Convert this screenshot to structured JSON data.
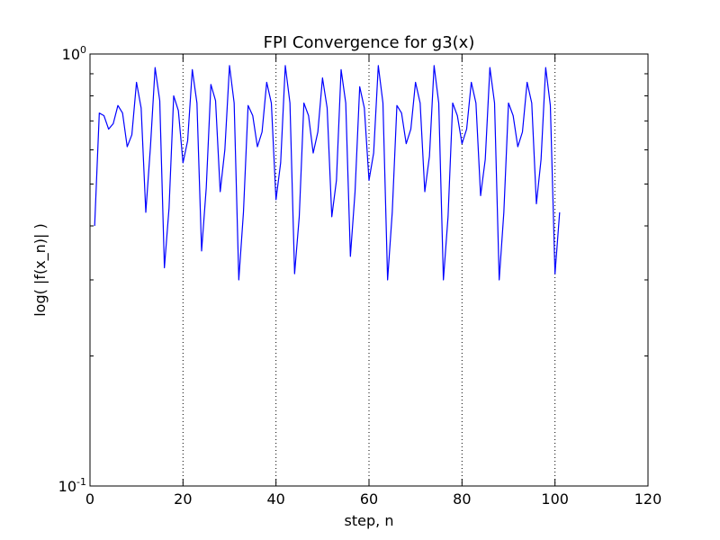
{
  "chart_data": {
    "type": "line",
    "title": "FPI Convergence for g3(x)",
    "xlabel": "step, n",
    "ylabel": "log( |f(x_n)| )",
    "xlim": [
      0,
      120
    ],
    "ylim": [
      0.1,
      1.0
    ],
    "yscale": "log",
    "grid": "x-major-dotted",
    "x_ticks": [
      0,
      20,
      40,
      60,
      80,
      100,
      120
    ],
    "x_tick_labels": [
      "0",
      "20",
      "40",
      "60",
      "80",
      "100",
      "120"
    ],
    "y_major_ticks": [
      0.1,
      1.0
    ],
    "y_tick_labels": [
      {
        "base": "10",
        "exp": "-1"
      },
      {
        "base": "10",
        "exp": "0"
      }
    ],
    "y_minor_ticks": [
      0.2,
      0.3,
      0.4,
      0.5,
      0.6,
      0.7,
      0.8,
      0.9
    ],
    "line_color": "#0000ff",
    "series": [
      {
        "x": [
          1,
          2,
          3,
          4,
          5,
          6,
          7,
          8,
          9,
          10,
          11,
          12,
          13,
          14,
          15,
          16,
          17,
          18,
          19,
          20,
          21,
          22,
          23,
          24,
          25,
          26,
          27,
          28,
          29,
          30,
          31,
          32,
          33,
          34,
          35,
          36,
          37,
          38,
          39,
          40,
          41,
          42,
          43,
          44,
          45,
          46,
          47,
          48,
          49,
          50,
          51,
          52,
          53,
          54,
          55,
          56,
          57,
          58,
          59,
          60,
          61,
          62,
          63,
          64,
          65,
          66,
          67,
          68,
          69,
          70,
          71,
          72,
          73,
          74,
          75,
          76,
          77,
          78,
          79,
          80,
          81,
          82,
          83,
          84,
          85,
          86,
          87,
          88,
          89,
          90,
          91,
          92,
          93,
          94,
          95,
          96,
          97,
          98,
          99,
          100,
          101
        ],
        "values": [
          0.4,
          0.73,
          0.72,
          0.67,
          0.69,
          0.76,
          0.73,
          0.61,
          0.65,
          0.86,
          0.75,
          0.43,
          0.61,
          0.93,
          0.78,
          0.32,
          0.44,
          0.8,
          0.74,
          0.56,
          0.63,
          0.92,
          0.77,
          0.35,
          0.49,
          0.85,
          0.78,
          0.48,
          0.6,
          0.94,
          0.77,
          0.3,
          0.43,
          0.76,
          0.72,
          0.61,
          0.66,
          0.86,
          0.77,
          0.46,
          0.56,
          0.94,
          0.77,
          0.31,
          0.42,
          0.77,
          0.72,
          0.59,
          0.66,
          0.88,
          0.75,
          0.42,
          0.51,
          0.92,
          0.77,
          0.34,
          0.48,
          0.84,
          0.75,
          0.51,
          0.59,
          0.94,
          0.77,
          0.3,
          0.43,
          0.76,
          0.73,
          0.62,
          0.67,
          0.86,
          0.77,
          0.48,
          0.58,
          0.94,
          0.77,
          0.3,
          0.42,
          0.77,
          0.72,
          0.62,
          0.67,
          0.86,
          0.77,
          0.47,
          0.57,
          0.93,
          0.77,
          0.3,
          0.43,
          0.77,
          0.72,
          0.61,
          0.66,
          0.86,
          0.77,
          0.45,
          0.57,
          0.93,
          0.76,
          0.31,
          0.43
        ]
      }
    ]
  }
}
